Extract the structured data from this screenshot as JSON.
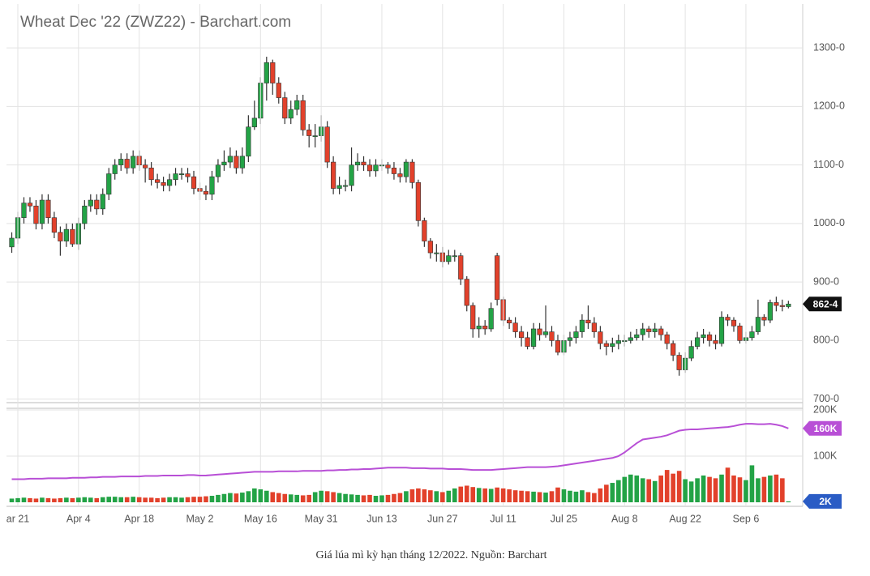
{
  "chart_data": [
    {
      "type": "candlestick",
      "title": "Wheat Dec '22 (ZWZ22) - Barchart.com",
      "caption": "Giá lúa mì kỳ hạn tháng 12/2022. Nguồn: Barchart",
      "up_color": "#23a346",
      "down_color": "#e2412b",
      "grid": true,
      "ylim": [
        694,
        1375
      ],
      "yticks": [
        {
          "value": 700,
          "label": "700-0"
        },
        {
          "value": 800,
          "label": "800-0"
        },
        {
          "value": 900,
          "label": "900-0"
        },
        {
          "value": 1000,
          "label": "1000-0"
        },
        {
          "value": 1100,
          "label": "1100-0"
        },
        {
          "value": 1200,
          "label": "1200-0"
        },
        {
          "value": 1300,
          "label": "1300-0"
        }
      ],
      "last_label": "862-4",
      "last_color": "#111111",
      "open": [
        960,
        975,
        1010,
        1035,
        1030,
        1000,
        1040,
        1010,
        985,
        970,
        990,
        965,
        1000,
        1030,
        1040,
        1025,
        1050,
        1085,
        1100,
        1110,
        1095,
        1115,
        1100,
        1095,
        1075,
        1070,
        1065,
        1075,
        1085,
        1085,
        1080,
        1060,
        1055,
        1050,
        1080,
        1100,
        1105,
        1115,
        1095,
        1115,
        1165,
        1180,
        1240,
        1275,
        1240,
        1215,
        1180,
        1195,
        1210,
        1160,
        1150,
        1150,
        1165,
        1105,
        1060,
        1065,
        1065,
        1100,
        1105,
        1100,
        1090,
        1100,
        1100,
        1095,
        1085,
        1080,
        1105,
        1070,
        1005,
        970,
        950,
        950,
        935,
        945,
        945,
        905,
        860,
        820,
        825,
        820,
        945,
        870,
        835,
        830,
        815,
        805,
        790,
        820,
        810,
        815,
        800,
        780,
        800,
        805,
        815,
        835,
        830,
        815,
        795,
        790,
        795,
        800,
        800,
        805,
        810,
        820,
        815,
        820,
        810,
        795,
        775,
        750,
        770,
        790,
        805,
        810,
        800,
        795,
        840,
        835,
        825,
        800,
        805,
        815,
        840,
        835,
        865,
        860,
        858
      ],
      "high": [
        985,
        1020,
        1045,
        1045,
        1040,
        1050,
        1050,
        1020,
        995,
        1000,
        1000,
        1010,
        1040,
        1050,
        1050,
        1060,
        1095,
        1110,
        1120,
        1120,
        1125,
        1125,
        1110,
        1105,
        1085,
        1080,
        1085,
        1095,
        1095,
        1095,
        1090,
        1070,
        1065,
        1090,
        1110,
        1125,
        1130,
        1125,
        1130,
        1185,
        1210,
        1250,
        1285,
        1280,
        1250,
        1225,
        1210,
        1220,
        1220,
        1170,
        1170,
        1185,
        1175,
        1115,
        1080,
        1075,
        1130,
        1120,
        1115,
        1110,
        1110,
        1110,
        1105,
        1105,
        1095,
        1110,
        1110,
        1075,
        1010,
        975,
        965,
        960,
        955,
        955,
        950,
        910,
        865,
        840,
        835,
        865,
        950,
        875,
        840,
        840,
        825,
        815,
        830,
        830,
        860,
        825,
        810,
        810,
        815,
        825,
        845,
        860,
        840,
        825,
        800,
        805,
        810,
        810,
        815,
        820,
        830,
        825,
        830,
        825,
        815,
        800,
        780,
        780,
        800,
        815,
        820,
        815,
        810,
        850,
        845,
        840,
        830,
        815,
        825,
        870,
        845,
        870,
        875,
        870,
        868
      ],
      "low": [
        950,
        965,
        1000,
        1020,
        990,
        990,
        1000,
        975,
        945,
        960,
        960,
        955,
        990,
        1020,
        1015,
        1015,
        1040,
        1075,
        1090,
        1085,
        1085,
        1090,
        1070,
        1065,
        1060,
        1055,
        1055,
        1065,
        1075,
        1070,
        1050,
        1040,
        1040,
        1040,
        1070,
        1090,
        1095,
        1085,
        1085,
        1105,
        1160,
        1170,
        1210,
        1220,
        1205,
        1170,
        1170,
        1185,
        1150,
        1130,
        1130,
        1140,
        1095,
        1050,
        1050,
        1055,
        1055,
        1090,
        1090,
        1080,
        1080,
        1090,
        1085,
        1075,
        1070,
        1070,
        1060,
        995,
        960,
        940,
        935,
        925,
        930,
        935,
        895,
        850,
        805,
        805,
        810,
        815,
        860,
        825,
        820,
        805,
        790,
        785,
        785,
        800,
        805,
        790,
        775,
        775,
        790,
        795,
        805,
        820,
        805,
        785,
        775,
        780,
        785,
        790,
        795,
        800,
        800,
        805,
        805,
        800,
        785,
        765,
        740,
        745,
        765,
        785,
        795,
        790,
        785,
        790,
        825,
        815,
        795,
        795,
        800,
        810,
        825,
        830,
        850,
        850,
        855
      ],
      "close": [
        975,
        1010,
        1035,
        1030,
        1000,
        1040,
        1010,
        985,
        970,
        990,
        965,
        1000,
        1030,
        1040,
        1025,
        1050,
        1085,
        1100,
        1110,
        1095,
        1115,
        1100,
        1095,
        1075,
        1070,
        1065,
        1075,
        1085,
        1085,
        1080,
        1060,
        1055,
        1050,
        1080,
        1100,
        1105,
        1115,
        1095,
        1115,
        1165,
        1180,
        1240,
        1275,
        1240,
        1215,
        1180,
        1195,
        1210,
        1160,
        1150,
        1150,
        1165,
        1105,
        1060,
        1065,
        1065,
        1100,
        1105,
        1100,
        1090,
        1100,
        1100,
        1095,
        1085,
        1080,
        1105,
        1070,
        1005,
        970,
        950,
        950,
        935,
        945,
        945,
        905,
        860,
        820,
        825,
        820,
        855,
        870,
        835,
        830,
        815,
        805,
        790,
        820,
        810,
        815,
        800,
        780,
        800,
        805,
        815,
        835,
        830,
        815,
        795,
        790,
        795,
        800,
        800,
        805,
        810,
        820,
        815,
        820,
        810,
        795,
        775,
        750,
        770,
        790,
        805,
        810,
        800,
        795,
        840,
        835,
        825,
        800,
        805,
        815,
        840,
        835,
        865,
        860,
        858,
        862.5
      ]
    },
    {
      "type": "volume",
      "grid": true,
      "ylim": [
        0,
        200000
      ],
      "yticks": [
        {
          "value": 100000,
          "label": "100K"
        },
        {
          "value": 200000,
          "label": "200K"
        }
      ],
      "categories": [
        null,
        "ar 21",
        null,
        null,
        null,
        null,
        null,
        null,
        null,
        null,
        null,
        "Apr 4",
        null,
        null,
        null,
        null,
        null,
        null,
        null,
        null,
        null,
        "Apr 18",
        null,
        null,
        null,
        null,
        null,
        null,
        null,
        null,
        null,
        "May 2",
        null,
        null,
        null,
        null,
        null,
        null,
        null,
        null,
        null,
        "May 16",
        null,
        null,
        null,
        null,
        null,
        null,
        null,
        null,
        null,
        "May 31",
        null,
        null,
        null,
        null,
        null,
        null,
        null,
        null,
        null,
        "Jun 13",
        null,
        null,
        null,
        null,
        null,
        null,
        null,
        null,
        null,
        "Jun 27",
        null,
        null,
        null,
        null,
        null,
        null,
        null,
        null,
        null,
        "Jul 11",
        null,
        null,
        null,
        null,
        null,
        null,
        null,
        null,
        null,
        "Jul 25",
        null,
        null,
        null,
        null,
        null,
        null,
        null,
        null,
        null,
        "Aug 8",
        null,
        null,
        null,
        null,
        null,
        null,
        null,
        null,
        null,
        "Aug 22",
        null,
        null,
        null,
        null,
        null,
        null,
        null,
        null,
        null,
        "Sep 6",
        null,
        null,
        null,
        null,
        null,
        null,
        null
      ],
      "series": [
        {
          "type": "bar",
          "last_label": "2K",
          "last_color": "#2a5cc5",
          "values": [
            8000,
            9000,
            10000,
            9000,
            8000,
            10000,
            9000,
            8000,
            9000,
            10000,
            9000,
            10000,
            11000,
            10000,
            9000,
            11000,
            12000,
            12000,
            11000,
            11000,
            12000,
            11000,
            10000,
            10000,
            9000,
            10000,
            11000,
            11000,
            10000,
            11000,
            12000,
            12000,
            13000,
            14000,
            16000,
            18000,
            20000,
            19000,
            21000,
            24000,
            30000,
            28000,
            25000,
            22000,
            20000,
            18000,
            17000,
            16000,
            15000,
            16000,
            22000,
            25000,
            24000,
            22000,
            20000,
            18000,
            17000,
            16000,
            15000,
            16000,
            14000,
            15000,
            16000,
            18000,
            20000,
            24000,
            28000,
            30000,
            28000,
            26000,
            24000,
            22000,
            25000,
            30000,
            34000,
            36000,
            33000,
            31000,
            30000,
            29000,
            32000,
            30000,
            28000,
            26000,
            25000,
            24000,
            23000,
            22000,
            21000,
            24000,
            32000,
            28000,
            25000,
            23000,
            26000,
            22000,
            20000,
            30000,
            38000,
            42000,
            48000,
            55000,
            60000,
            58000,
            52000,
            50000,
            46000,
            58000,
            70000,
            62000,
            68000,
            50000,
            45000,
            52000,
            58000,
            55000,
            52000,
            60000,
            75000,
            58000,
            54000,
            48000,
            80000,
            52000,
            55000,
            58000,
            60000,
            52000,
            2000
          ]
        },
        {
          "type": "line",
          "color": "#b84fd6",
          "last_label": "160K",
          "last_color": "#b84fd6",
          "values": [
            50000,
            50000,
            50000,
            51000,
            51000,
            51000,
            52000,
            52000,
            52000,
            52000,
            53000,
            53000,
            53000,
            54000,
            54000,
            55000,
            55000,
            55000,
            56000,
            56000,
            56000,
            56000,
            57000,
            57000,
            57000,
            58000,
            58000,
            58000,
            58000,
            59000,
            59000,
            58000,
            58000,
            59000,
            60000,
            61000,
            62000,
            63000,
            64000,
            65000,
            66000,
            66000,
            66000,
            66000,
            67000,
            67000,
            67000,
            67000,
            68000,
            68000,
            68000,
            68000,
            69000,
            69000,
            70000,
            70000,
            71000,
            71000,
            72000,
            72000,
            73000,
            74000,
            75000,
            75000,
            75000,
            75000,
            74000,
            74000,
            74000,
            73000,
            73000,
            73000,
            72000,
            72000,
            72000,
            71000,
            70000,
            70000,
            70000,
            70000,
            71000,
            72000,
            73000,
            74000,
            75000,
            76000,
            76000,
            76000,
            76000,
            77000,
            78000,
            80000,
            82000,
            84000,
            86000,
            88000,
            90000,
            92000,
            94000,
            96000,
            100000,
            108000,
            118000,
            128000,
            136000,
            138000,
            140000,
            142000,
            145000,
            150000,
            155000,
            157000,
            158000,
            158000,
            159000,
            160000,
            161000,
            162000,
            163000,
            165000,
            168000,
            170000,
            170000,
            169000,
            169000,
            170000,
            168000,
            165000,
            160000
          ]
        }
      ]
    }
  ]
}
